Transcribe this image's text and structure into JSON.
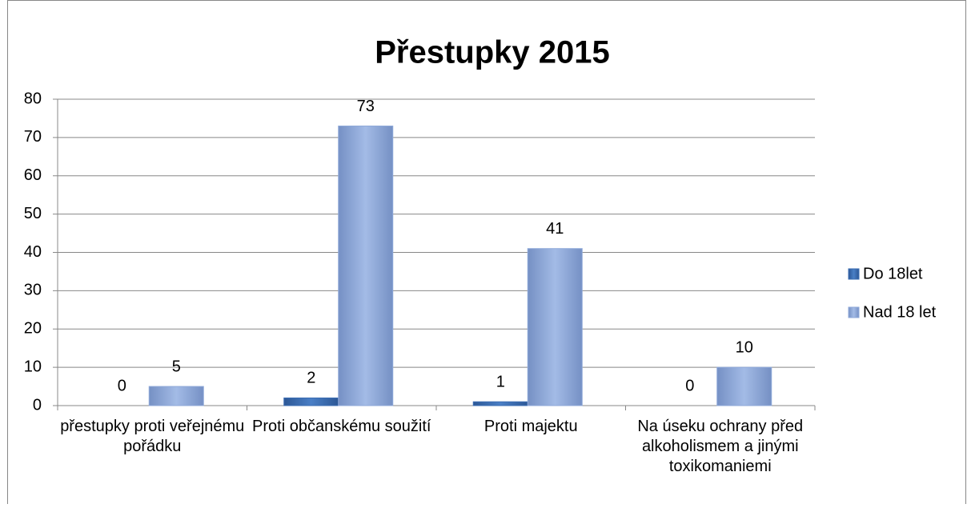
{
  "chart_data": {
    "type": "bar",
    "title": "Přestupky 2015",
    "categories": [
      "přestupky proti veřejnému pořádku",
      "Proti občanskému soužití",
      "Proti majektu",
      "Na úseku ochrany před alkoholismem a jinými toxikomaniemi"
    ],
    "series": [
      {
        "name": "Do 18let",
        "color": "#3b6db3",
        "values": [
          0,
          2,
          1,
          0
        ]
      },
      {
        "name": "Nad 18 let",
        "color": "#8fa9d9",
        "values": [
          5,
          73,
          41,
          10
        ]
      }
    ],
    "ylim": [
      0,
      80
    ],
    "yticks": [
      0,
      10,
      20,
      30,
      40,
      50,
      60,
      70,
      80
    ],
    "grid": true,
    "legend": "right"
  }
}
